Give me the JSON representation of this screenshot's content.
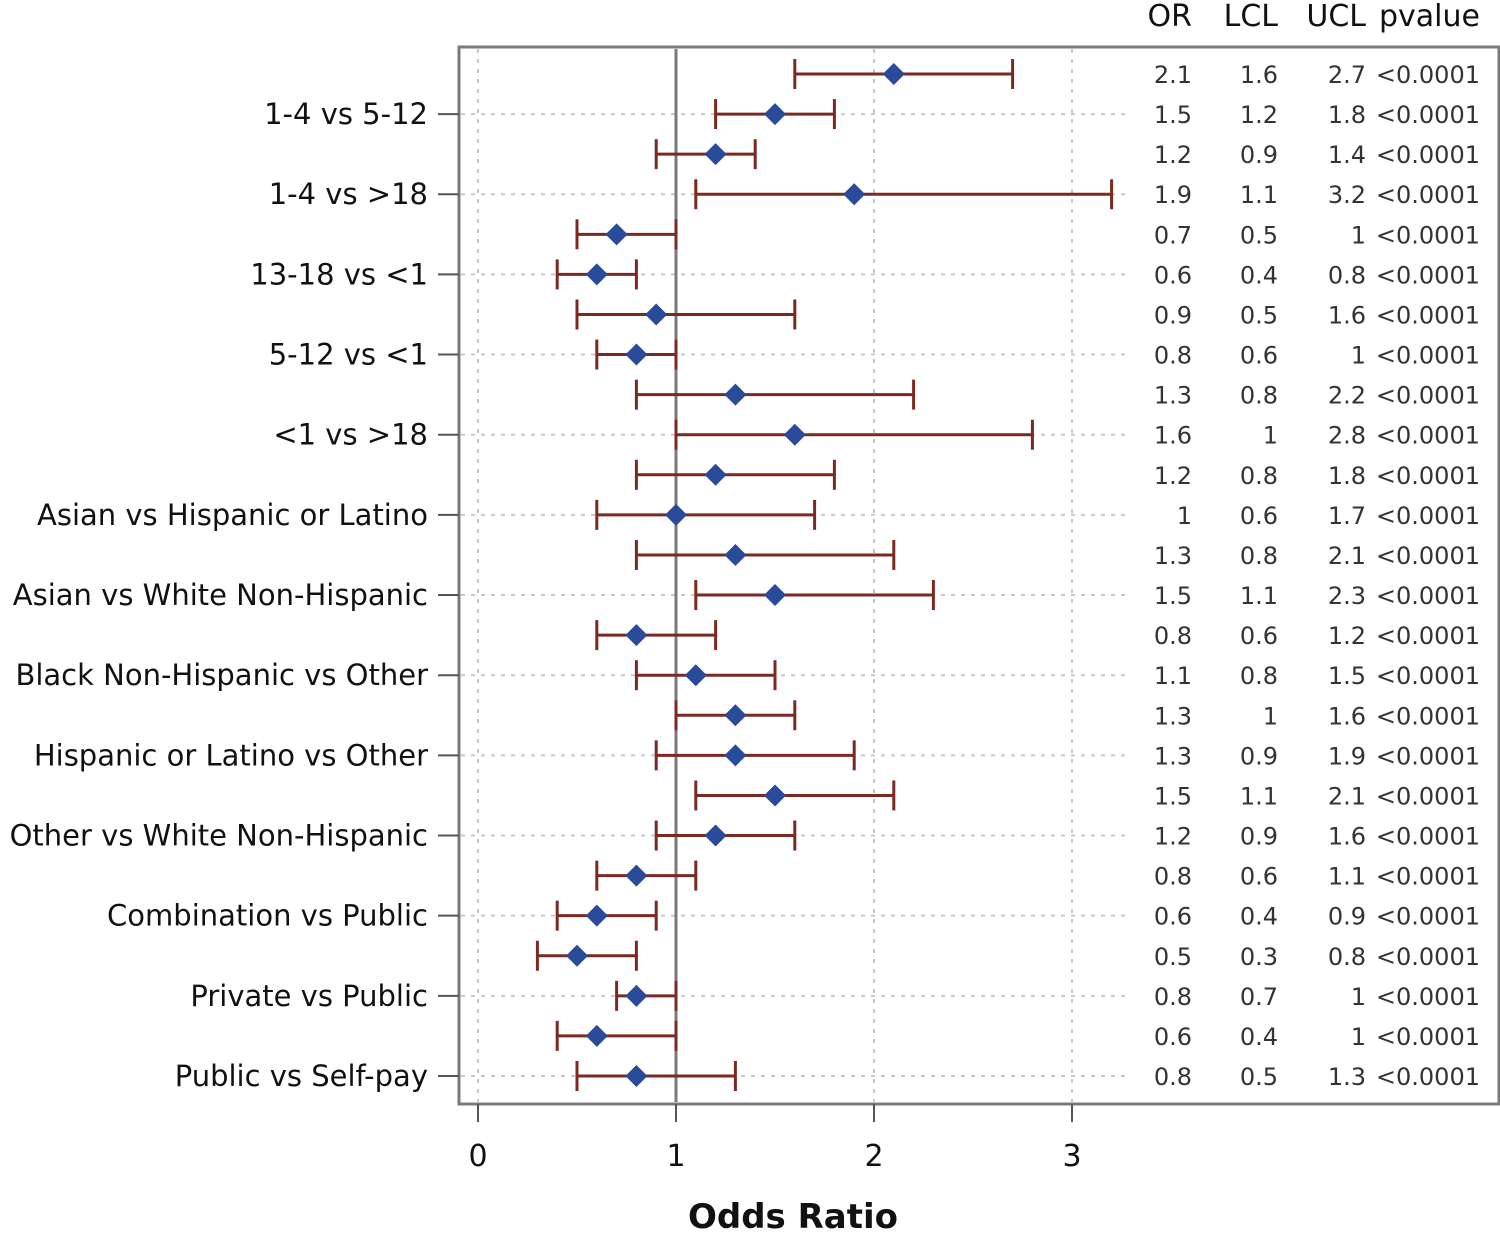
{
  "chart_data": {
    "type": "forest",
    "xlabel": "Odds Ratio",
    "xlim": [
      -0.1,
      3.3
    ],
    "xticks": [
      0,
      1,
      2,
      3
    ],
    "reference_line": 1,
    "grid": true,
    "columns": [
      "OR",
      "LCL",
      "UCL",
      "pvalue"
    ],
    "y_labels": [
      "1-4 vs 5-12",
      "1-4 vs >18",
      "13-18 vs <1",
      "5-12 vs <1",
      "<1 vs >18",
      "Asian vs Hispanic or Latino",
      "Asian vs White Non-Hispanic",
      "Black Non-Hispanic vs Other",
      "Hispanic or Latino vs Other",
      "Other vs White Non-Hispanic",
      "Combination vs Public",
      "Private vs Public",
      "Public vs Self-pay"
    ],
    "rows": [
      {
        "label": "",
        "or": 2.1,
        "lcl": 1.6,
        "ucl": 2.7,
        "or_text": "2.1",
        "lcl_text": "1.6",
        "ucl_text": "2.7",
        "pvalue": "<0.0001"
      },
      {
        "label": "1-4 vs 5-12",
        "or": 1.5,
        "lcl": 1.2,
        "ucl": 1.8,
        "or_text": "1.5",
        "lcl_text": "1.2",
        "ucl_text": "1.8",
        "pvalue": "<0.0001"
      },
      {
        "label": "",
        "or": 1.2,
        "lcl": 0.9,
        "ucl": 1.4,
        "or_text": "1.2",
        "lcl_text": "0.9",
        "ucl_text": "1.4",
        "pvalue": "<0.0001"
      },
      {
        "label": "1-4 vs >18",
        "or": 1.9,
        "lcl": 1.1,
        "ucl": 3.2,
        "or_text": "1.9",
        "lcl_text": "1.1",
        "ucl_text": "3.2",
        "pvalue": "<0.0001"
      },
      {
        "label": "",
        "or": 0.7,
        "lcl": 0.5,
        "ucl": 1.0,
        "or_text": "0.7",
        "lcl_text": "0.5",
        "ucl_text": "1",
        "pvalue": "<0.0001"
      },
      {
        "label": "13-18 vs <1",
        "or": 0.6,
        "lcl": 0.4,
        "ucl": 0.8,
        "or_text": "0.6",
        "lcl_text": "0.4",
        "ucl_text": "0.8",
        "pvalue": "<0.0001"
      },
      {
        "label": "",
        "or": 0.9,
        "lcl": 0.5,
        "ucl": 1.6,
        "or_text": "0.9",
        "lcl_text": "0.5",
        "ucl_text": "1.6",
        "pvalue": "<0.0001"
      },
      {
        "label": "5-12 vs <1",
        "or": 0.8,
        "lcl": 0.6,
        "ucl": 1.0,
        "or_text": "0.8",
        "lcl_text": "0.6",
        "ucl_text": "1",
        "pvalue": "<0.0001"
      },
      {
        "label": "",
        "or": 1.3,
        "lcl": 0.8,
        "ucl": 2.2,
        "or_text": "1.3",
        "lcl_text": "0.8",
        "ucl_text": "2.2",
        "pvalue": "<0.0001"
      },
      {
        "label": "<1 vs >18",
        "or": 1.6,
        "lcl": 1.0,
        "ucl": 2.8,
        "or_text": "1.6",
        "lcl_text": "1",
        "ucl_text": "2.8",
        "pvalue": "<0.0001"
      },
      {
        "label": "",
        "or": 1.2,
        "lcl": 0.8,
        "ucl": 1.8,
        "or_text": "1.2",
        "lcl_text": "0.8",
        "ucl_text": "1.8",
        "pvalue": "<0.0001"
      },
      {
        "label": "Asian vs Hispanic or Latino",
        "or": 1.0,
        "lcl": 0.6,
        "ucl": 1.7,
        "or_text": "1",
        "lcl_text": "0.6",
        "ucl_text": "1.7",
        "pvalue": "<0.0001"
      },
      {
        "label": "",
        "or": 1.3,
        "lcl": 0.8,
        "ucl": 2.1,
        "or_text": "1.3",
        "lcl_text": "0.8",
        "ucl_text": "2.1",
        "pvalue": "<0.0001"
      },
      {
        "label": "Asian vs White Non-Hispanic",
        "or": 1.5,
        "lcl": 1.1,
        "ucl": 2.3,
        "or_text": "1.5",
        "lcl_text": "1.1",
        "ucl_text": "2.3",
        "pvalue": "<0.0001"
      },
      {
        "label": "",
        "or": 0.8,
        "lcl": 0.6,
        "ucl": 1.2,
        "or_text": "0.8",
        "lcl_text": "0.6",
        "ucl_text": "1.2",
        "pvalue": "<0.0001"
      },
      {
        "label": "Black Non-Hispanic vs Other",
        "or": 1.1,
        "lcl": 0.8,
        "ucl": 1.5,
        "or_text": "1.1",
        "lcl_text": "0.8",
        "ucl_text": "1.5",
        "pvalue": "<0.0001"
      },
      {
        "label": "",
        "or": 1.3,
        "lcl": 1.0,
        "ucl": 1.6,
        "or_text": "1.3",
        "lcl_text": "1",
        "ucl_text": "1.6",
        "pvalue": "<0.0001"
      },
      {
        "label": "Hispanic or Latino vs Other",
        "or": 1.3,
        "lcl": 0.9,
        "ucl": 1.9,
        "or_text": "1.3",
        "lcl_text": "0.9",
        "ucl_text": "1.9",
        "pvalue": "<0.0001"
      },
      {
        "label": "",
        "or": 1.5,
        "lcl": 1.1,
        "ucl": 2.1,
        "or_text": "1.5",
        "lcl_text": "1.1",
        "ucl_text": "2.1",
        "pvalue": "<0.0001"
      },
      {
        "label": "Other vs White Non-Hispanic",
        "or": 1.2,
        "lcl": 0.9,
        "ucl": 1.6,
        "or_text": "1.2",
        "lcl_text": "0.9",
        "ucl_text": "1.6",
        "pvalue": "<0.0001"
      },
      {
        "label": "",
        "or": 0.8,
        "lcl": 0.6,
        "ucl": 1.1,
        "or_text": "0.8",
        "lcl_text": "0.6",
        "ucl_text": "1.1",
        "pvalue": "<0.0001"
      },
      {
        "label": "Combination vs Public",
        "or": 0.6,
        "lcl": 0.4,
        "ucl": 0.9,
        "or_text": "0.6",
        "lcl_text": "0.4",
        "ucl_text": "0.9",
        "pvalue": "<0.0001"
      },
      {
        "label": "",
        "or": 0.5,
        "lcl": 0.3,
        "ucl": 0.8,
        "or_text": "0.5",
        "lcl_text": "0.3",
        "ucl_text": "0.8",
        "pvalue": "<0.0001"
      },
      {
        "label": "Private vs Public",
        "or": 0.8,
        "lcl": 0.7,
        "ucl": 1.0,
        "or_text": "0.8",
        "lcl_text": "0.7",
        "ucl_text": "1",
        "pvalue": "<0.0001"
      },
      {
        "label": "",
        "or": 0.6,
        "lcl": 0.4,
        "ucl": 1.0,
        "or_text": "0.6",
        "lcl_text": "0.4",
        "ucl_text": "1",
        "pvalue": "<0.0001"
      },
      {
        "label": "Public vs Self-pay",
        "or": 0.8,
        "lcl": 0.5,
        "ucl": 1.3,
        "or_text": "0.8",
        "lcl_text": "0.5",
        "ucl_text": "1.3",
        "pvalue": "<0.0001"
      }
    ],
    "colors": {
      "marker": "#2a4a9a",
      "interval": "#7b2a22",
      "reference": "#7a7a7a",
      "grid": "#c8c8c8",
      "frame": "#7a7a7a"
    }
  }
}
